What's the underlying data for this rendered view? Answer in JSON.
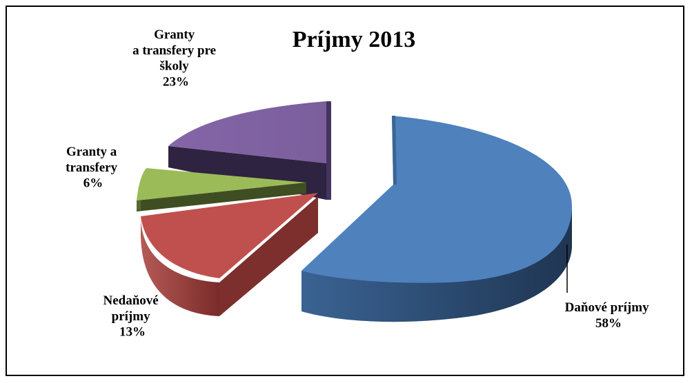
{
  "chart_data": {
    "type": "pie",
    "style": "3d-exploded",
    "title": "Príjmy 2013",
    "slices": [
      {
        "name": "Daňové príjmy",
        "value": 58,
        "value_label": "58%",
        "color": "#4F81BD"
      },
      {
        "name": "Nedaňové príjmy",
        "value": 13,
        "value_label": "13%",
        "color": "#C0504D"
      },
      {
        "name": "Granty a transfery",
        "value": 6,
        "value_label": "6%",
        "color": "#9BBB59"
      },
      {
        "name": "Granty a transfery pre školy",
        "value": 23,
        "value_label": "23%",
        "color": "#8064A2"
      }
    ]
  }
}
